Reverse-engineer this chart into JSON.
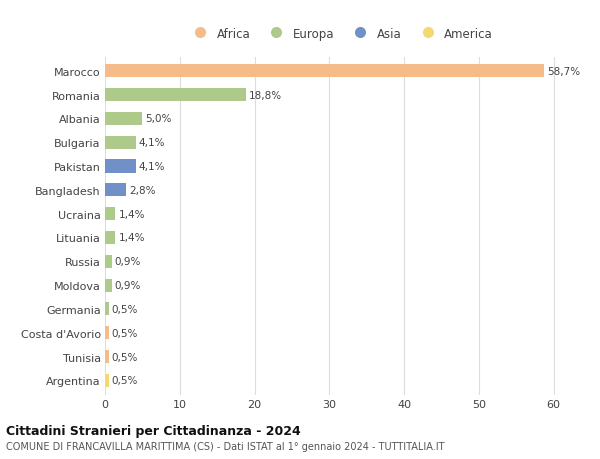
{
  "countries": [
    "Marocco",
    "Romania",
    "Albania",
    "Bulgaria",
    "Pakistan",
    "Bangladesh",
    "Ucraina",
    "Lituania",
    "Russia",
    "Moldova",
    "Germania",
    "Costa d'Avorio",
    "Tunisia",
    "Argentina"
  ],
  "values": [
    58.7,
    18.8,
    5.0,
    4.1,
    4.1,
    2.8,
    1.4,
    1.4,
    0.9,
    0.9,
    0.5,
    0.5,
    0.5,
    0.5
  ],
  "labels": [
    "58,7%",
    "18,8%",
    "5,0%",
    "4,1%",
    "4,1%",
    "2,8%",
    "1,4%",
    "1,4%",
    "0,9%",
    "0,9%",
    "0,5%",
    "0,5%",
    "0,5%",
    "0,5%"
  ],
  "colors": [
    "#F5BC8A",
    "#AECA8A",
    "#AECA8A",
    "#AECA8A",
    "#7090C8",
    "#7090C8",
    "#AECA8A",
    "#AECA8A",
    "#AECA8A",
    "#AECA8A",
    "#AECA8A",
    "#F5BC8A",
    "#F5BC8A",
    "#F5D870"
  ],
  "legend_labels": [
    "Africa",
    "Europa",
    "Asia",
    "America"
  ],
  "legend_colors": [
    "#F5BC8A",
    "#AECA8A",
    "#7090C8",
    "#F5D870"
  ],
  "title1": "Cittadini Stranieri per Cittadinanza - 2024",
  "title2": "COMUNE DI FRANCAVILLA MARITTIMA (CS) - Dati ISTAT al 1° gennaio 2024 - TUTTITALIA.IT",
  "xlim": [
    0,
    63
  ],
  "xticks": [
    0,
    10,
    20,
    30,
    40,
    50,
    60
  ],
  "bg_color": "#ffffff",
  "grid_color": "#dddddd",
  "bar_height": 0.55
}
